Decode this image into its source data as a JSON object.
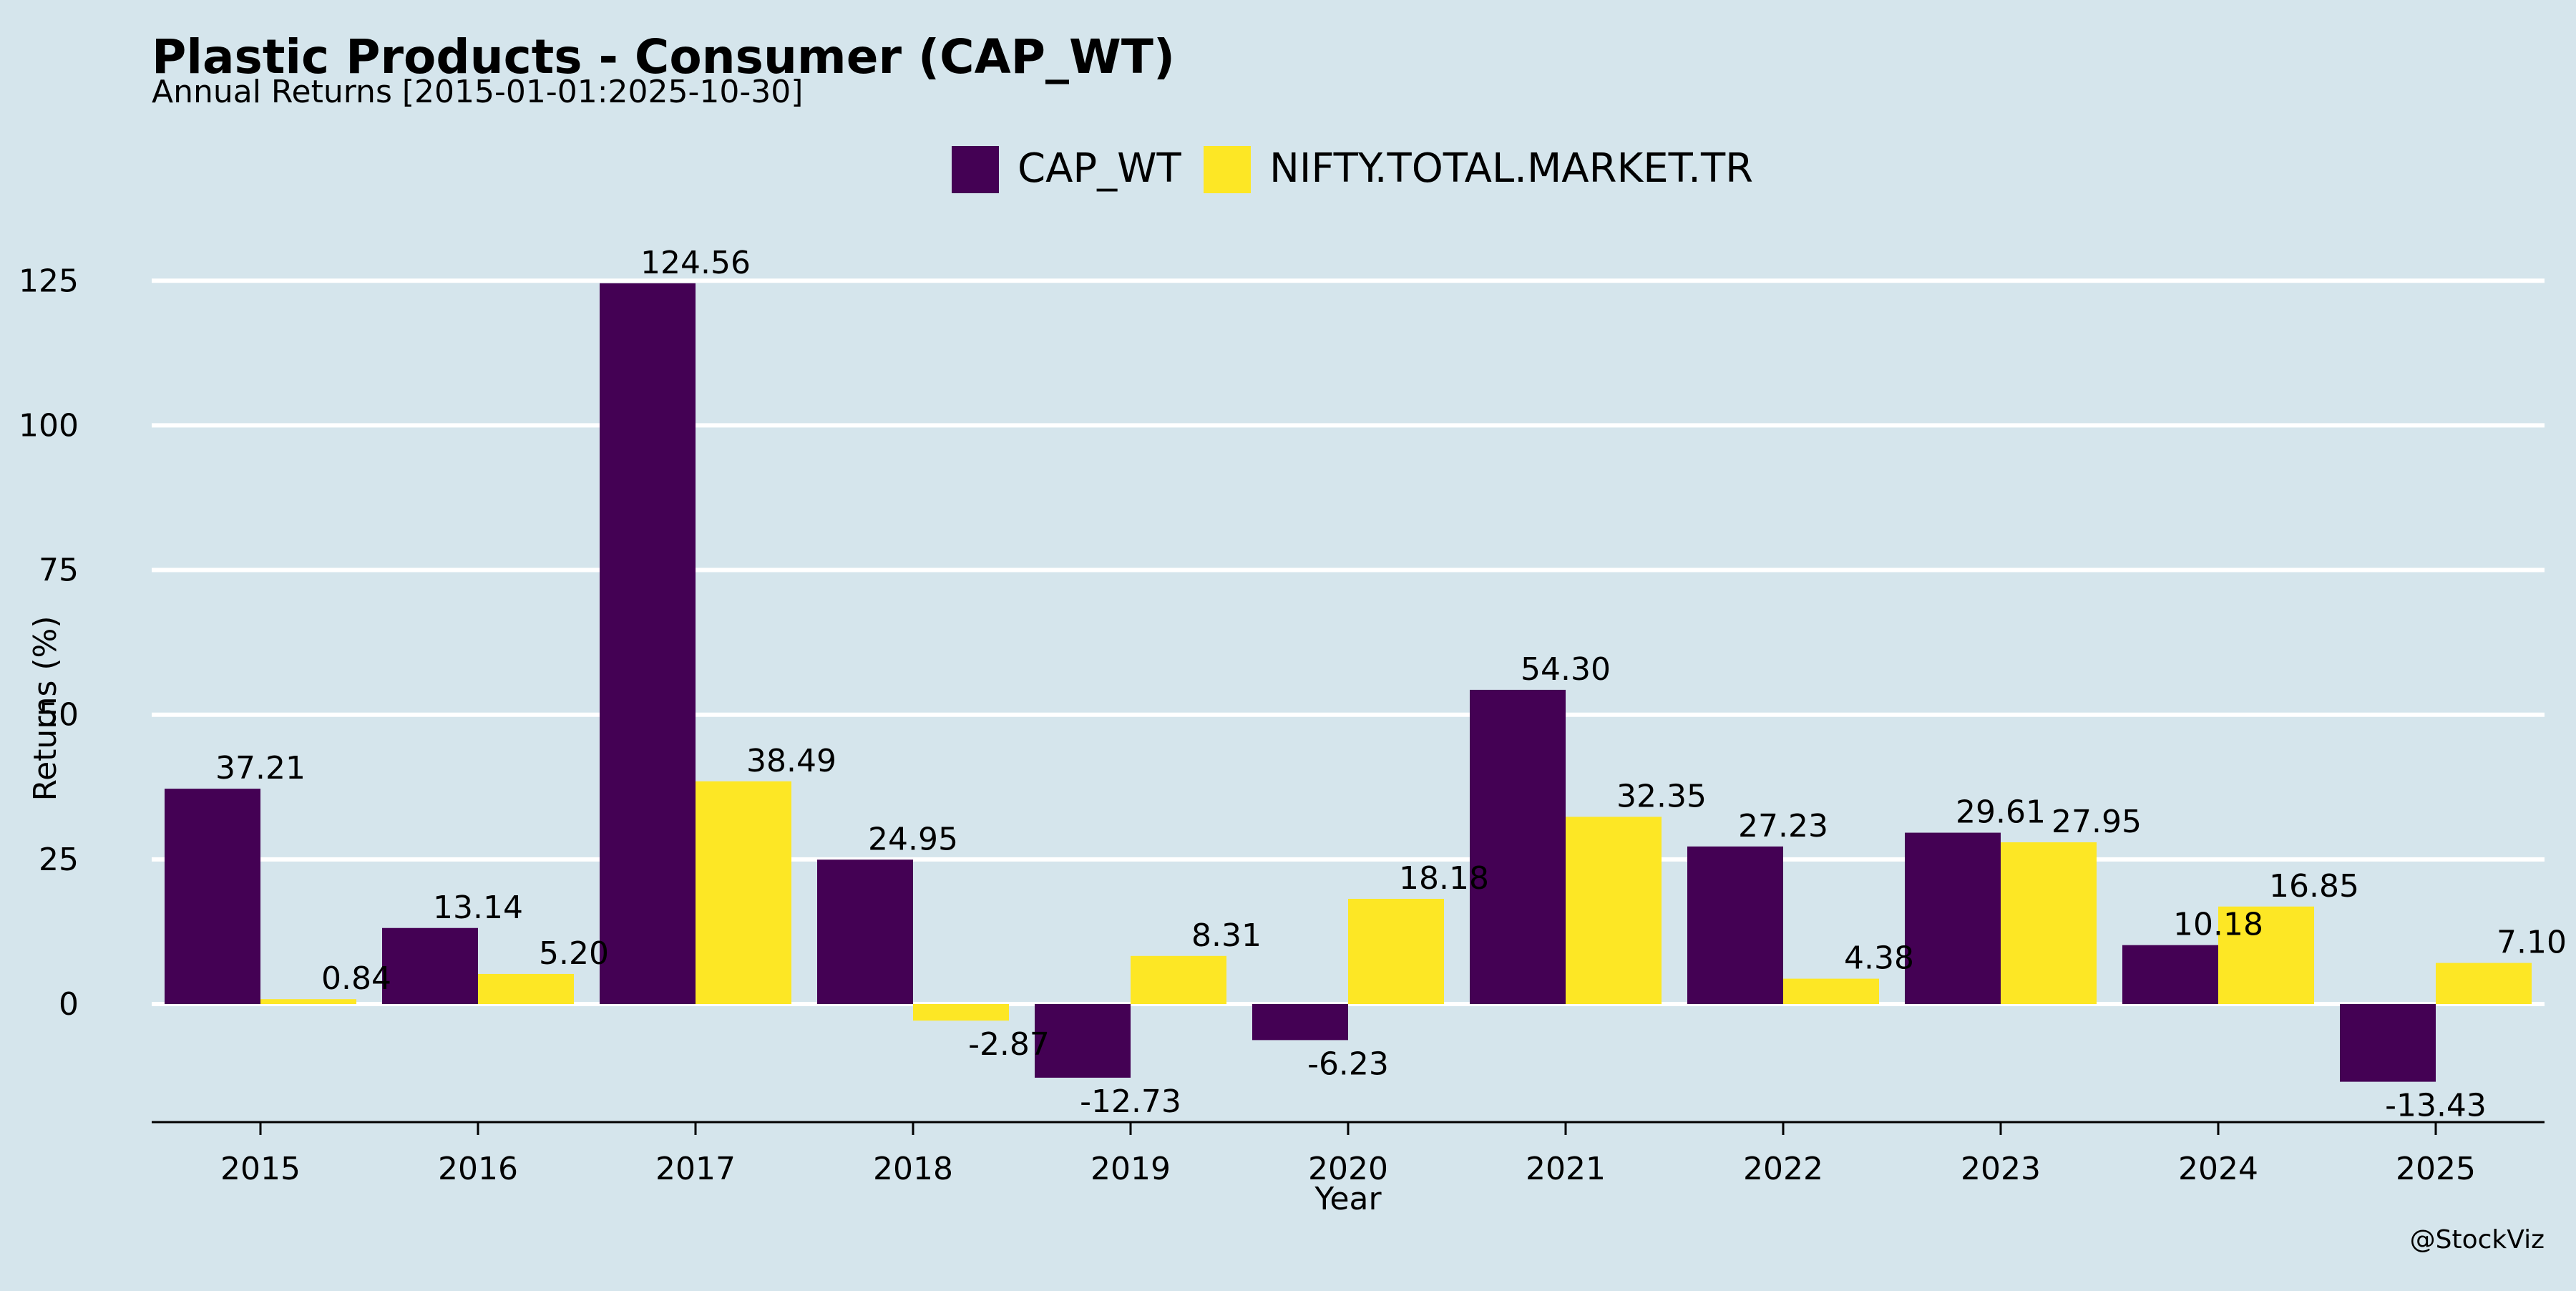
{
  "chart_data": {
    "type": "bar",
    "title": "Plastic Products - Consumer (CAP_WT)",
    "subtitle": "Annual Returns [2015-01-01:2025-10-30]",
    "xlabel": "Year",
    "ylabel": "Returns (%)",
    "categories": [
      "2015",
      "2016",
      "2017",
      "2018",
      "2019",
      "2020",
      "2021",
      "2022",
      "2023",
      "2024",
      "2025"
    ],
    "series": [
      {
        "name": "CAP_WT",
        "color": "#440154",
        "values": [
          37.21,
          13.14,
          124.56,
          24.95,
          -12.73,
          -6.23,
          54.3,
          27.23,
          29.61,
          10.18,
          -13.43
        ],
        "labels": [
          "37.21",
          "13.14",
          "124.56",
          "24.95",
          "-12.73",
          "-6.23",
          "54.30",
          "27.23",
          "29.61",
          "10.18",
          "-13.43"
        ]
      },
      {
        "name": "NIFTY.TOTAL.MARKET.TR",
        "color": "#fde725",
        "values": [
          0.84,
          5.2,
          38.49,
          -2.87,
          8.31,
          18.18,
          32.35,
          4.38,
          27.95,
          16.85,
          7.1
        ],
        "labels": [
          "0.84",
          "5.20",
          "38.49",
          "-2.87",
          "8.31",
          "18.18",
          "32.35",
          "4.38",
          "27.95",
          "16.85",
          "7.10"
        ]
      }
    ],
    "ylim": [
      -20,
      135
    ],
    "yticks": [
      0,
      25,
      50,
      75,
      100,
      125
    ],
    "grid": true,
    "legend_position": "top-center",
    "background": "#d5e5ec",
    "gridline_color": "#ffffff"
  },
  "watermark": "@StockViz"
}
